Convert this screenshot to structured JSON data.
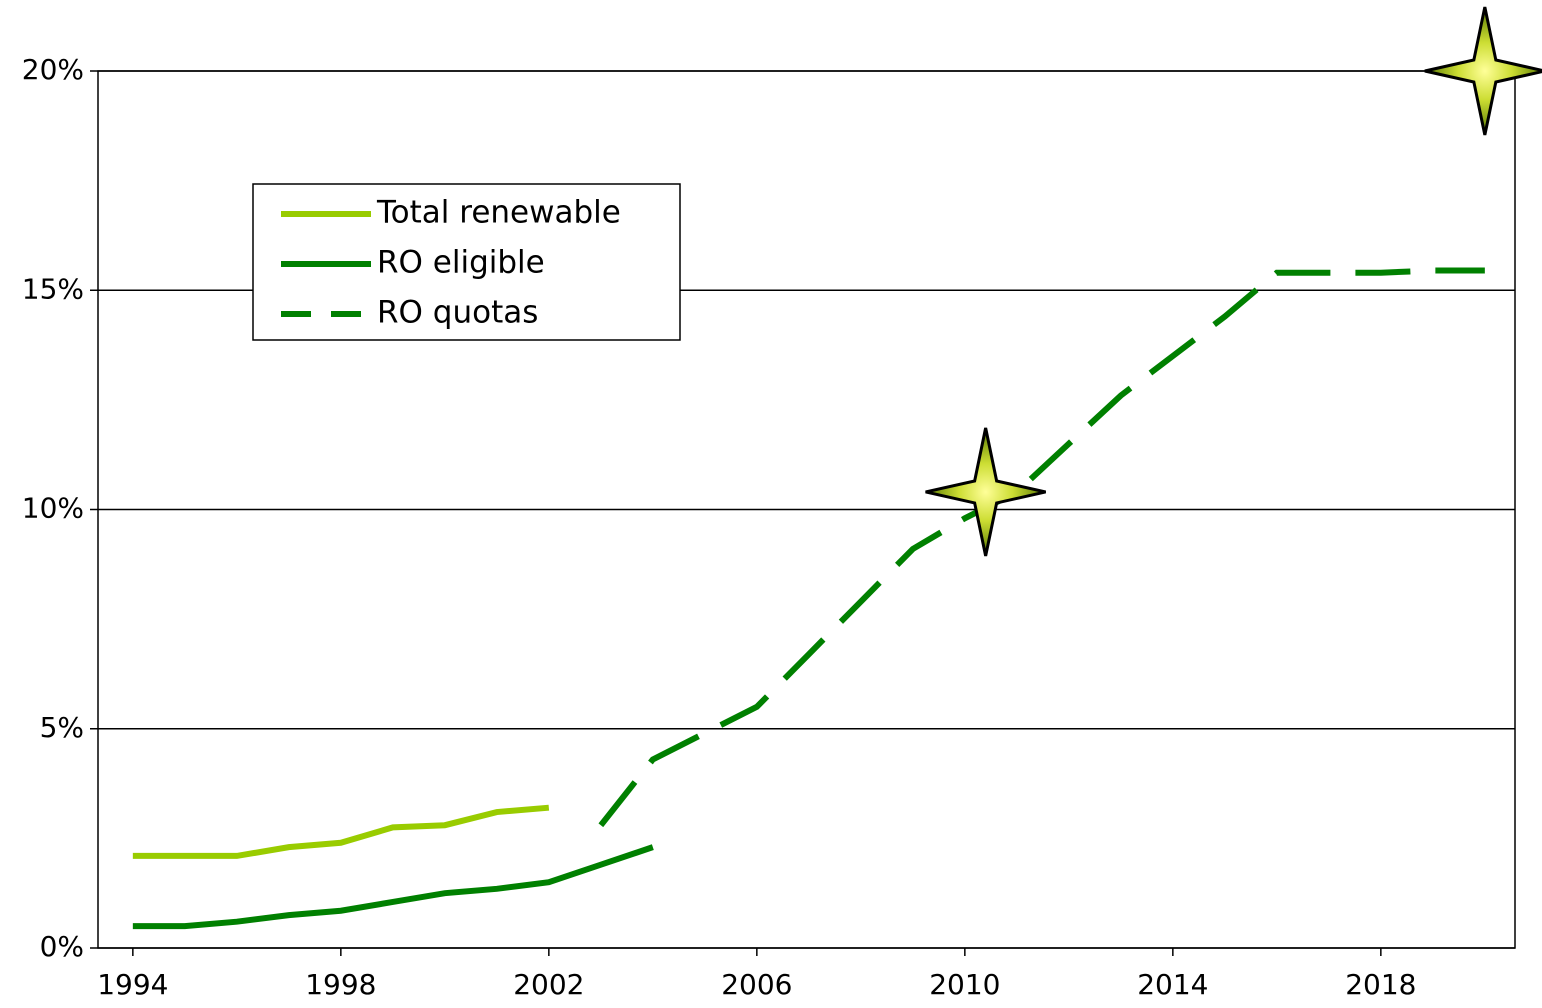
{
  "chart_data": {
    "type": "line",
    "series": [
      {
        "name": "Total renewable",
        "color": "#99cc00",
        "dashed": false,
        "x": [
          1994,
          1995,
          1996,
          1997,
          1998,
          1999,
          2000,
          2001,
          2002
        ],
        "values": [
          2.1,
          2.1,
          2.1,
          2.3,
          2.4,
          2.75,
          2.8,
          3.1,
          3.2
        ]
      },
      {
        "name": "RO eligible",
        "color": "#008000",
        "dashed": false,
        "x": [
          1994,
          1995,
          1996,
          1997,
          1998,
          1999,
          2000,
          2001,
          2002,
          2003,
          2004
        ],
        "values": [
          0.5,
          0.5,
          0.6,
          0.75,
          0.85,
          1.05,
          1.25,
          1.35,
          1.5,
          1.9,
          2.3
        ]
      },
      {
        "name": "RO quotas",
        "color": "#008000",
        "dashed": true,
        "x": [
          2003,
          2004,
          2005,
          2006,
          2007,
          2008,
          2009,
          2010,
          2011,
          2012,
          2013,
          2014,
          2015,
          2016,
          2017,
          2018,
          2019,
          2020
        ],
        "values": [
          2.8,
          4.3,
          4.9,
          5.5,
          6.7,
          7.9,
          9.1,
          9.8,
          10.4,
          11.5,
          12.6,
          13.5,
          14.4,
          15.4,
          15.4,
          15.4,
          15.45,
          15.45
        ]
      }
    ],
    "points": {
      "x": [
        2010.4,
        2020
      ],
      "values": [
        10.4,
        20
      ]
    },
    "xlim": [
      1993.33,
      2020.58
    ],
    "xticks": [
      1994,
      1998,
      2002,
      2006,
      2010,
      2014,
      2018
    ],
    "ylim": [
      0,
      20
    ],
    "yticks": [
      {
        "value": 0,
        "label": "0%"
      },
      {
        "value": 5,
        "label": "5%"
      },
      {
        "value": 10,
        "label": "10%"
      },
      {
        "value": 15,
        "label": "15%"
      },
      {
        "value": 20,
        "label": "20%"
      }
    ],
    "grid": true,
    "legend": "upper-left"
  }
}
